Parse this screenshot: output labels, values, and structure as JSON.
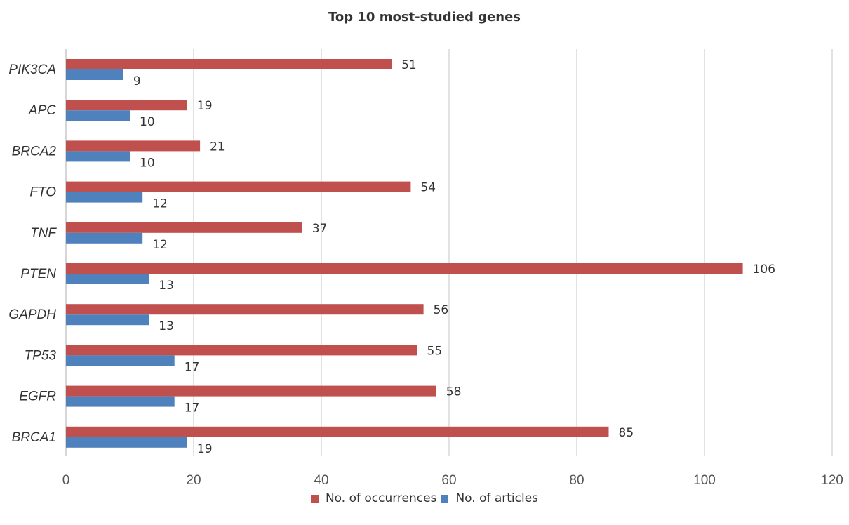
{
  "chart_data": {
    "type": "bar",
    "orientation": "horizontal",
    "title": "Top 10 most-studied genes",
    "categories": [
      "PIK3CA",
      "APC",
      "BRCA2",
      "FTO",
      "TNF",
      "PTEN",
      "GAPDH",
      "TP53",
      "EGFR",
      "BRCA1"
    ],
    "series": [
      {
        "name": "No. of occurrences",
        "color": "#c0504d",
        "values": [
          51,
          19,
          21,
          54,
          37,
          106,
          56,
          55,
          58,
          85
        ]
      },
      {
        "name": "No. of articles",
        "color": "#4f81bd",
        "values": [
          9,
          10,
          10,
          12,
          12,
          13,
          13,
          17,
          17,
          19
        ]
      }
    ],
    "xlim": [
      0,
      120
    ],
    "xticks": [
      0,
      20,
      40,
      60,
      80,
      100,
      120
    ],
    "grid": "vertical",
    "legend_position": "bottom"
  }
}
